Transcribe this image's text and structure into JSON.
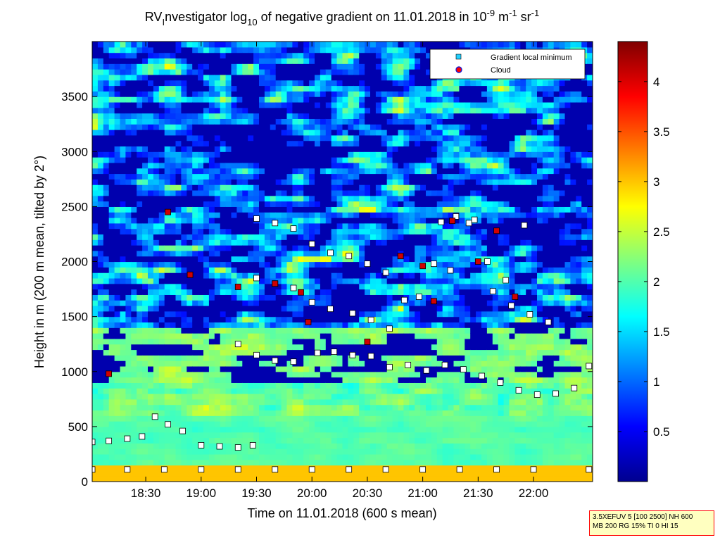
{
  "chart_data": {
    "type": "heatmap",
    "title_parts": {
      "prefix": "RV",
      "sub1": "I",
      "mid1": "nvestigator log",
      "sub2": "10",
      "mid2": " of negative gradient on 11.01.2018 in 10",
      "sup1": "-9",
      "mid3": " m",
      "sup2": "-1",
      "mid4": " sr",
      "sup3": "-1"
    },
    "xlabel": "Time on 11.01.2018 (600 s mean)",
    "ylabel": "Height in m (200 m mean, tilted by 2°)",
    "x_ticks": [
      "18:30",
      "19:00",
      "19:30",
      "20:00",
      "20:30",
      "21:00",
      "21:30",
      "22:00"
    ],
    "x_tick_minutes": [
      1110,
      1140,
      1170,
      1200,
      1230,
      1260,
      1290,
      1320
    ],
    "xlim_minutes": [
      1081,
      1352
    ],
    "y_ticks": [
      "0",
      "500",
      "1000",
      "1500",
      "2000",
      "2500",
      "3000",
      "3500"
    ],
    "y_tick_values": [
      0,
      500,
      1000,
      1500,
      2000,
      2500,
      3000,
      3500
    ],
    "ylim": [
      0,
      4000
    ],
    "colorbar": {
      "ticks": [
        "0.5",
        "1",
        "1.5",
        "2",
        "2.5",
        "3",
        "3.5",
        "4"
      ],
      "tick_values": [
        0.5,
        1,
        1.5,
        2,
        2.5,
        3,
        3.5,
        4
      ],
      "range": [
        0,
        4.4
      ],
      "colormap": "jet"
    },
    "legend": {
      "placement": "top-right",
      "entries": [
        {
          "label": "Gradient local minimum",
          "marker": "square",
          "color": "#22d0ff"
        },
        {
          "label": "Cloud",
          "marker": "circle",
          "color": "#ff0000"
        }
      ]
    },
    "series": [
      {
        "name": "Gradient local minimum",
        "x_minutes": [
          1081,
          1100,
          1120,
          1140,
          1160,
          1180,
          1200,
          1220,
          1240,
          1260,
          1280,
          1300,
          1320,
          1350
        ],
        "y": [
          110,
          110,
          110,
          110,
          110,
          110,
          110,
          110,
          110,
          110,
          110,
          110,
          110,
          110
        ]
      },
      {
        "name": "Gradient local minimum",
        "x_minutes": [
          1081,
          1090,
          1100,
          1108,
          1115,
          1122,
          1130,
          1140,
          1150,
          1160,
          1168
        ],
        "y": [
          360,
          370,
          390,
          410,
          590,
          520,
          460,
          330,
          320,
          310,
          330
        ]
      },
      {
        "name": "Gradient local minimum",
        "x_minutes": [
          1160,
          1170,
          1180,
          1190
        ],
        "y": [
          1250,
          1150,
          1100,
          1090
        ]
      },
      {
        "name": "Gradient local minimum",
        "x_minutes": [
          1203,
          1212,
          1222,
          1232,
          1242,
          1252,
          1262,
          1272,
          1282,
          1292,
          1302,
          1312,
          1322,
          1332,
          1342,
          1350
        ],
        "y": [
          1170,
          1180,
          1150,
          1140,
          1040,
          1060,
          1010,
          1060,
          1020,
          960,
          900,
          830,
          790,
          800,
          850,
          1050
        ]
      },
      {
        "name": "Gradient local minimum",
        "x_minutes": [
          1170,
          1180,
          1190,
          1200,
          1210,
          1220,
          1230,
          1240
        ],
        "y": [
          2390,
          2350,
          2300,
          2160,
          2080,
          2050,
          1980,
          1900
        ]
      },
      {
        "name": "Gradient local minimum",
        "x_minutes": [
          1170,
          1180,
          1190,
          1200,
          1210,
          1222,
          1232,
          1242
        ],
        "y": [
          1850,
          1800,
          1760,
          1630,
          1570,
          1530,
          1470,
          1390
        ]
      },
      {
        "name": "Gradient local minimum",
        "x_minutes": [
          1250,
          1258,
          1266,
          1275,
          1285,
          1295,
          1305,
          1315
        ],
        "y": [
          1650,
          1680,
          1980,
          1920,
          2350,
          2000,
          1830,
          2330
        ]
      },
      {
        "name": "Gradient local minimum",
        "x_minutes": [
          1270,
          1278,
          1288,
          1298,
          1308,
          1318,
          1328
        ],
        "y": [
          2360,
          2410,
          2380,
          1730,
          1600,
          1520,
          1450
        ]
      },
      {
        "name": "Cloud",
        "x_minutes": [
          1090,
          1122,
          1134,
          1160,
          1180,
          1194,
          1198,
          1230,
          1248,
          1260,
          1266,
          1276,
          1290,
          1300,
          1310
        ],
        "y": [
          980,
          2450,
          1880,
          1770,
          1800,
          1720,
          1450,
          1270,
          2050,
          1960,
          1640,
          2370,
          2000,
          2280,
          1680
        ]
      }
    ]
  },
  "infobox": {
    "line1": "3.5XEFUV 5 [100 2500] NH 600",
    "line2": "MB 200 RG 15% TI 0 HI 15"
  },
  "colors": {
    "infobox_bg": "#ffffc0",
    "infobox_border": "#ff0000"
  }
}
